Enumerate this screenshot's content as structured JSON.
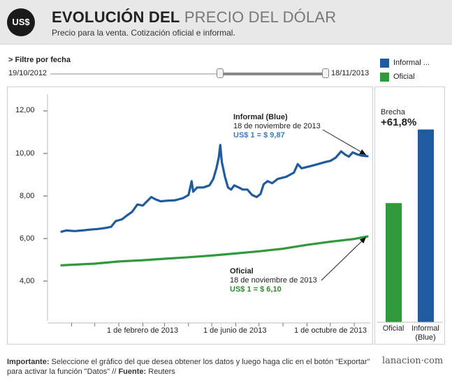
{
  "header": {
    "badge": "US$",
    "title_bold": "EVOLUCIÓN DEL",
    "title_light": "PRECIO DEL DÓLAR",
    "subtitle": "Precio para la venta. Cotización oficial e informal."
  },
  "filter": {
    "label": "> Filtre por fecha",
    "start": "19/10/2012",
    "end": "18/11/2013"
  },
  "legend": [
    {
      "label": "Informal ...",
      "color": "#1f5b9e"
    },
    {
      "label": "Oficial",
      "color": "#2f9a3c"
    }
  ],
  "annotations": {
    "informal": {
      "name": "Informal (Blue)",
      "date": "18 de noviembre de 2013",
      "value": "US$ 1 = $ 9,87"
    },
    "oficial": {
      "name": "Oficial",
      "date": "18 de noviembre de 2013",
      "value": "US$ 1 = $ 6,10"
    }
  },
  "brecha": {
    "label": "Brecha",
    "value": "+61,8%"
  },
  "bar_categories": [
    {
      "label": "Oficial"
    },
    {
      "label": "Informal (Blue)"
    }
  ],
  "footer": {
    "important_label": "Importante:",
    "important_text": " Seleccione el gráfico del que desea obtener los datos y luego haga clic en el botón \"Exportar\" para activar la función \"Datos\" //",
    "source_label": "Fuente:",
    "source_text": " Reuters",
    "brand": "lanacion·com"
  },
  "chart_data": [
    {
      "type": "line",
      "x_axis": {
        "min": "2012-10-19",
        "max": "2013-11-18",
        "ticks": [
          "1 de febrero de 2013",
          "1 de junio de 2013",
          "1 de octubre de 2013"
        ]
      },
      "y_axis": {
        "min": 3.0,
        "max": 12.5,
        "ticks": [
          "4,00",
          "6,00",
          "8,00",
          "10,00",
          "12,00"
        ]
      },
      "series": [
        {
          "name": "Informal (Blue)",
          "color": "#1f5b9e",
          "points": [
            [
              "2012-10-19",
              6.32
            ],
            [
              "2012-10-25",
              6.38
            ],
            [
              "2012-11-05",
              6.35
            ],
            [
              "2012-11-15",
              6.38
            ],
            [
              "2012-11-25",
              6.42
            ],
            [
              "2012-12-05",
              6.45
            ],
            [
              "2012-12-15",
              6.5
            ],
            [
              "2012-12-22",
              6.55
            ],
            [
              "2012-12-28",
              6.82
            ],
            [
              "2013-01-05",
              6.9
            ],
            [
              "2013-01-12",
              7.1
            ],
            [
              "2013-01-18",
              7.25
            ],
            [
              "2013-01-25",
              7.6
            ],
            [
              "2013-02-01",
              7.55
            ],
            [
              "2013-02-05",
              7.7
            ],
            [
              "2013-02-12",
              7.95
            ],
            [
              "2013-02-17",
              7.85
            ],
            [
              "2013-02-24",
              7.75
            ],
            [
              "2013-03-05",
              7.78
            ],
            [
              "2013-03-15",
              7.8
            ],
            [
              "2013-03-25",
              7.9
            ],
            [
              "2013-04-01",
              8.05
            ],
            [
              "2013-04-05",
              8.7
            ],
            [
              "2013-04-07",
              8.2
            ],
            [
              "2013-04-12",
              8.4
            ],
            [
              "2013-04-20",
              8.4
            ],
            [
              "2013-04-28",
              8.5
            ],
            [
              "2013-05-03",
              8.8
            ],
            [
              "2013-05-07",
              9.3
            ],
            [
              "2013-05-10",
              9.8
            ],
            [
              "2013-05-12",
              10.4
            ],
            [
              "2013-05-14",
              9.6
            ],
            [
              "2013-05-18",
              8.9
            ],
            [
              "2013-05-22",
              8.4
            ],
            [
              "2013-05-26",
              8.3
            ],
            [
              "2013-05-30",
              8.5
            ],
            [
              "2013-06-05",
              8.4
            ],
            [
              "2013-06-10",
              8.3
            ],
            [
              "2013-06-16",
              8.3
            ],
            [
              "2013-06-22",
              8.05
            ],
            [
              "2013-06-28",
              7.95
            ],
            [
              "2013-07-03",
              8.1
            ],
            [
              "2013-07-07",
              8.55
            ],
            [
              "2013-07-12",
              8.7
            ],
            [
              "2013-07-18",
              8.6
            ],
            [
              "2013-07-25",
              8.8
            ],
            [
              "2013-08-05",
              8.9
            ],
            [
              "2013-08-15",
              9.1
            ],
            [
              "2013-08-20",
              9.5
            ],
            [
              "2013-08-25",
              9.3
            ],
            [
              "2013-09-05",
              9.4
            ],
            [
              "2013-09-15",
              9.5
            ],
            [
              "2013-09-25",
              9.6
            ],
            [
              "2013-10-01",
              9.65
            ],
            [
              "2013-10-08",
              9.8
            ],
            [
              "2013-10-15",
              10.1
            ],
            [
              "2013-10-20",
              9.95
            ],
            [
              "2013-10-25",
              9.85
            ],
            [
              "2013-10-30",
              10.05
            ],
            [
              "2013-11-05",
              9.95
            ],
            [
              "2013-11-10",
              9.9
            ],
            [
              "2013-11-18",
              9.87
            ]
          ]
        },
        {
          "name": "Oficial",
          "color": "#2f9a3c",
          "points": [
            [
              "2012-10-19",
              4.74
            ],
            [
              "2012-12-01",
              4.82
            ],
            [
              "2013-01-01",
              4.92
            ],
            [
              "2013-02-01",
              4.98
            ],
            [
              "2013-03-01",
              5.05
            ],
            [
              "2013-04-01",
              5.12
            ],
            [
              "2013-05-01",
              5.2
            ],
            [
              "2013-06-01",
              5.3
            ],
            [
              "2013-07-01",
              5.4
            ],
            [
              "2013-08-01",
              5.52
            ],
            [
              "2013-09-01",
              5.7
            ],
            [
              "2013-10-01",
              5.85
            ],
            [
              "2013-11-01",
              5.98
            ],
            [
              "2013-11-18",
              6.1
            ]
          ]
        }
      ]
    },
    {
      "type": "bar",
      "categories": [
        "Oficial",
        "Informal (Blue)"
      ],
      "values": [
        6.1,
        9.87
      ],
      "colors": [
        "#2f9a3c",
        "#1f5b9e"
      ],
      "ylim": [
        0,
        10.8
      ]
    }
  ]
}
